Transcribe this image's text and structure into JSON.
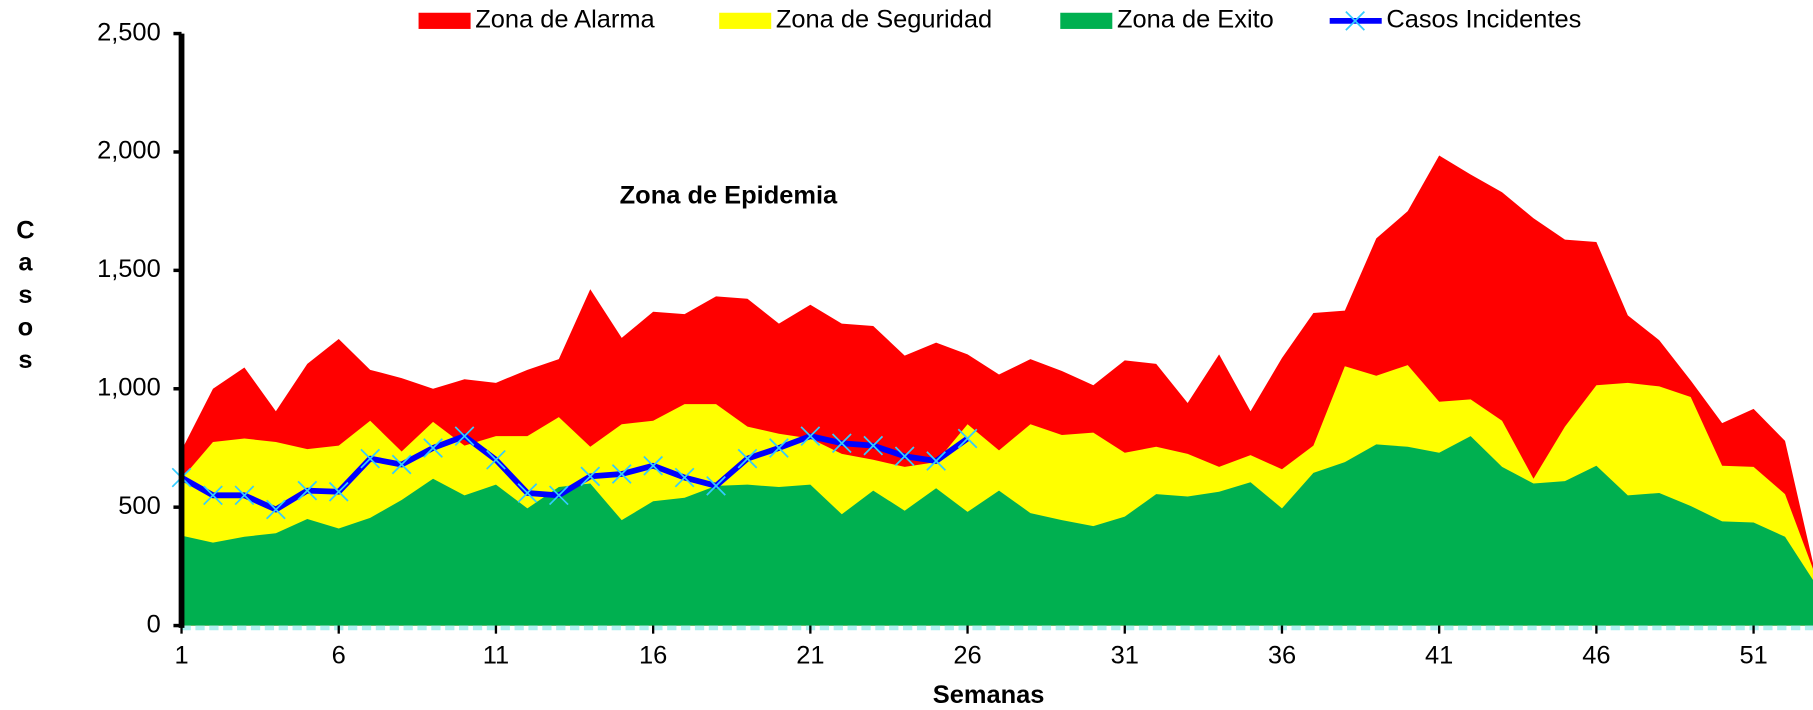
{
  "chart_data": {
    "type": "area-line",
    "annotation": "Zona de Epidemia",
    "x_label": "Semanas",
    "y_label": "Casos",
    "x": [
      1,
      2,
      3,
      4,
      5,
      6,
      7,
      8,
      9,
      10,
      11,
      12,
      13,
      14,
      15,
      16,
      17,
      18,
      19,
      20,
      21,
      22,
      23,
      24,
      25,
      26,
      27,
      28,
      29,
      30,
      31,
      32,
      33,
      34,
      35,
      36,
      37,
      38,
      39,
      40,
      41,
      42,
      43,
      44,
      45,
      46,
      47,
      48,
      49,
      50,
      51,
      52,
      53
    ],
    "xlim": [
      1,
      53
    ],
    "xticks": [
      1,
      6,
      11,
      16,
      21,
      26,
      31,
      36,
      41,
      46,
      51
    ],
    "ylim": [
      0,
      2500
    ],
    "yticks": [
      0,
      500,
      {
        "value": 1000,
        "label": "1,000"
      },
      {
        "value": 1500,
        "label": "1,500"
      },
      {
        "value": 2000,
        "label": "2,000"
      },
      {
        "value": 2500,
        "label": "2,500"
      }
    ],
    "series": [
      {
        "name": "Zona de Alarma",
        "kind": "area",
        "color": "#ff0000",
        "values": [
          740,
          1000,
          1090,
          905,
          1105,
          1210,
          1080,
          1045,
          1000,
          1040,
          1025,
          1080,
          1125,
          1420,
          1215,
          1325,
          1315,
          1390,
          1380,
          1275,
          1355,
          1275,
          1265,
          1140,
          1195,
          1145,
          1060,
          1125,
          1075,
          1015,
          1120,
          1105,
          940,
          1145,
          905,
          1130,
          1320,
          1330,
          1635,
          1750,
          1985,
          1905,
          1830,
          1720,
          1630,
          1620,
          1310,
          1205,
          1035,
          855,
          915,
          780,
          200
        ]
      },
      {
        "name": "Zona de Seguridad",
        "kind": "area",
        "color": "#ffff00",
        "values": [
          620,
          775,
          790,
          775,
          745,
          760,
          865,
          735,
          860,
          760,
          800,
          800,
          880,
          755,
          850,
          865,
          935,
          935,
          840,
          810,
          790,
          725,
          700,
          670,
          690,
          850,
          740,
          850,
          805,
          815,
          730,
          755,
          725,
          670,
          720,
          660,
          760,
          1095,
          1055,
          1100,
          945,
          955,
          865,
          620,
          840,
          1015,
          1025,
          1010,
          965,
          675,
          670,
          555,
          200
        ]
      },
      {
        "name": "Zona de Exito",
        "kind": "area",
        "color": "#00b050",
        "values": [
          380,
          350,
          375,
          390,
          450,
          410,
          455,
          530,
          620,
          550,
          595,
          495,
          585,
          600,
          445,
          525,
          540,
          590,
          595,
          585,
          595,
          470,
          570,
          485,
          580,
          480,
          570,
          475,
          445,
          420,
          460,
          555,
          545,
          565,
          605,
          495,
          645,
          690,
          765,
          755,
          730,
          800,
          670,
          600,
          610,
          675,
          550,
          560,
          505,
          440,
          435,
          375,
          170
        ]
      },
      {
        "name": "Casos Incidentes",
        "kind": "line",
        "color": "#0000ff",
        "marker_color": "#33ccff",
        "values": [
          625,
          550,
          550,
          490,
          570,
          565,
          705,
          680,
          750,
          800,
          700,
          560,
          550,
          630,
          640,
          675,
          625,
          590,
          705,
          750,
          800,
          770,
          760,
          715,
          695,
          790,
          null,
          null,
          null,
          null,
          null,
          null,
          null,
          null,
          null,
          null,
          null,
          null,
          null,
          null,
          null,
          null,
          null,
          null,
          null,
          null,
          null,
          null,
          null,
          null,
          null,
          null,
          null
        ]
      }
    ]
  }
}
